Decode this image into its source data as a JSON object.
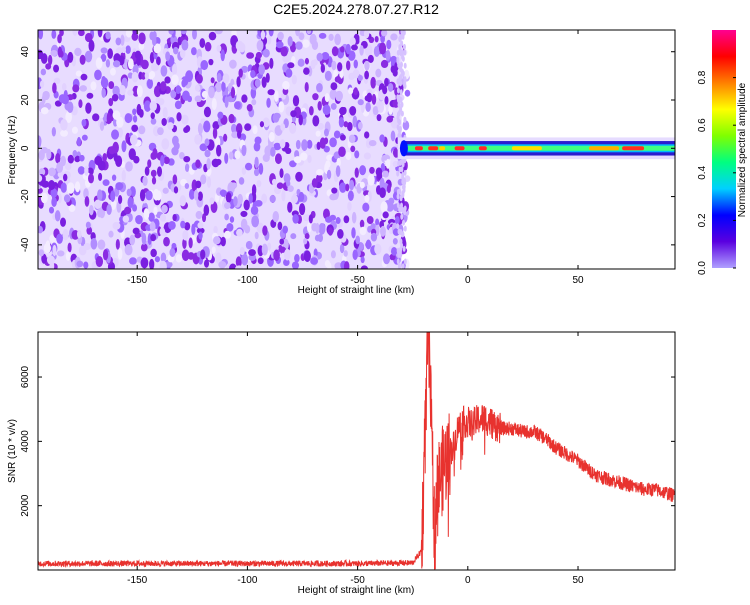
{
  "title": "C2E5.2024.278.07.27.R12",
  "colors": {
    "snr_line": "#e8322e",
    "spectrum_noise": "#8a2be2",
    "colorbar_stops": [
      "#b0a0ff",
      "#5a00e0",
      "#0000ff",
      "#00d0ff",
      "#00ff80",
      "#80ff00",
      "#ffff00",
      "#ff8000",
      "#ff0000",
      "#ff0090"
    ]
  },
  "chart_data": [
    {
      "type": "heatmap",
      "title": "C2E5.2024.278.07.27.R12",
      "xlabel": "Height of straight line (km)",
      "ylabel": "Frequency (Hz)",
      "xlim": [
        -195,
        94
      ],
      "ylim": [
        -50,
        49
      ],
      "x_ticks": [
        -150,
        -100,
        -50,
        0,
        50
      ],
      "y_ticks": [
        -40,
        -20,
        0,
        20,
        40
      ],
      "grid": false,
      "regions": [
        {
          "x_range": [
            -195,
            -30
          ],
          "y_range": [
            -50,
            49
          ],
          "description": "broadband noise",
          "normalized_amplitude": [
            0.0,
            0.15
          ]
        },
        {
          "x_range": [
            -30,
            94
          ],
          "y_range": [
            -3,
            3
          ],
          "description": "narrow signal near 0 Hz",
          "normalized_amplitude": [
            0.2,
            1.0
          ]
        }
      ],
      "colorbar": {
        "label": "Normalized spectral amplitude",
        "range": [
          0,
          1
        ],
        "ticks": [
          0.0,
          0.2,
          0.4,
          0.6,
          0.8
        ]
      }
    },
    {
      "type": "line",
      "xlabel": "Height of straight line (km)",
      "ylabel": "SNR (10 * v/v)",
      "xlim": [
        -195,
        94
      ],
      "ylim": [
        0,
        7400
      ],
      "x_ticks": [
        -150,
        -100,
        -50,
        0,
        50
      ],
      "y_ticks": [
        2000,
        4000,
        6000
      ],
      "grid": false,
      "series": [
        {
          "x": [
            -195,
            -150,
            -100,
            -50,
            -25,
            -21,
            -19,
            -18,
            -17,
            -16,
            -15,
            -14,
            -12,
            -10,
            -8,
            -6,
            -5,
            -3,
            0,
            2,
            5,
            8,
            10,
            15,
            20,
            25,
            30,
            35,
            40,
            45,
            50,
            55,
            60,
            65,
            70,
            75,
            80,
            85,
            90,
            94
          ],
          "y": [
            200,
            200,
            200,
            200,
            220,
            600,
            5000,
            7300,
            5500,
            3200,
            1000,
            2600,
            3000,
            3400,
            3700,
            3900,
            4300,
            4600,
            4600,
            4500,
            4700,
            4700,
            4600,
            4400,
            4400,
            4300,
            4300,
            4100,
            3800,
            3600,
            3400,
            3100,
            2900,
            2800,
            2700,
            2600,
            2500,
            2500,
            2400,
            2300
          ]
        }
      ]
    }
  ]
}
